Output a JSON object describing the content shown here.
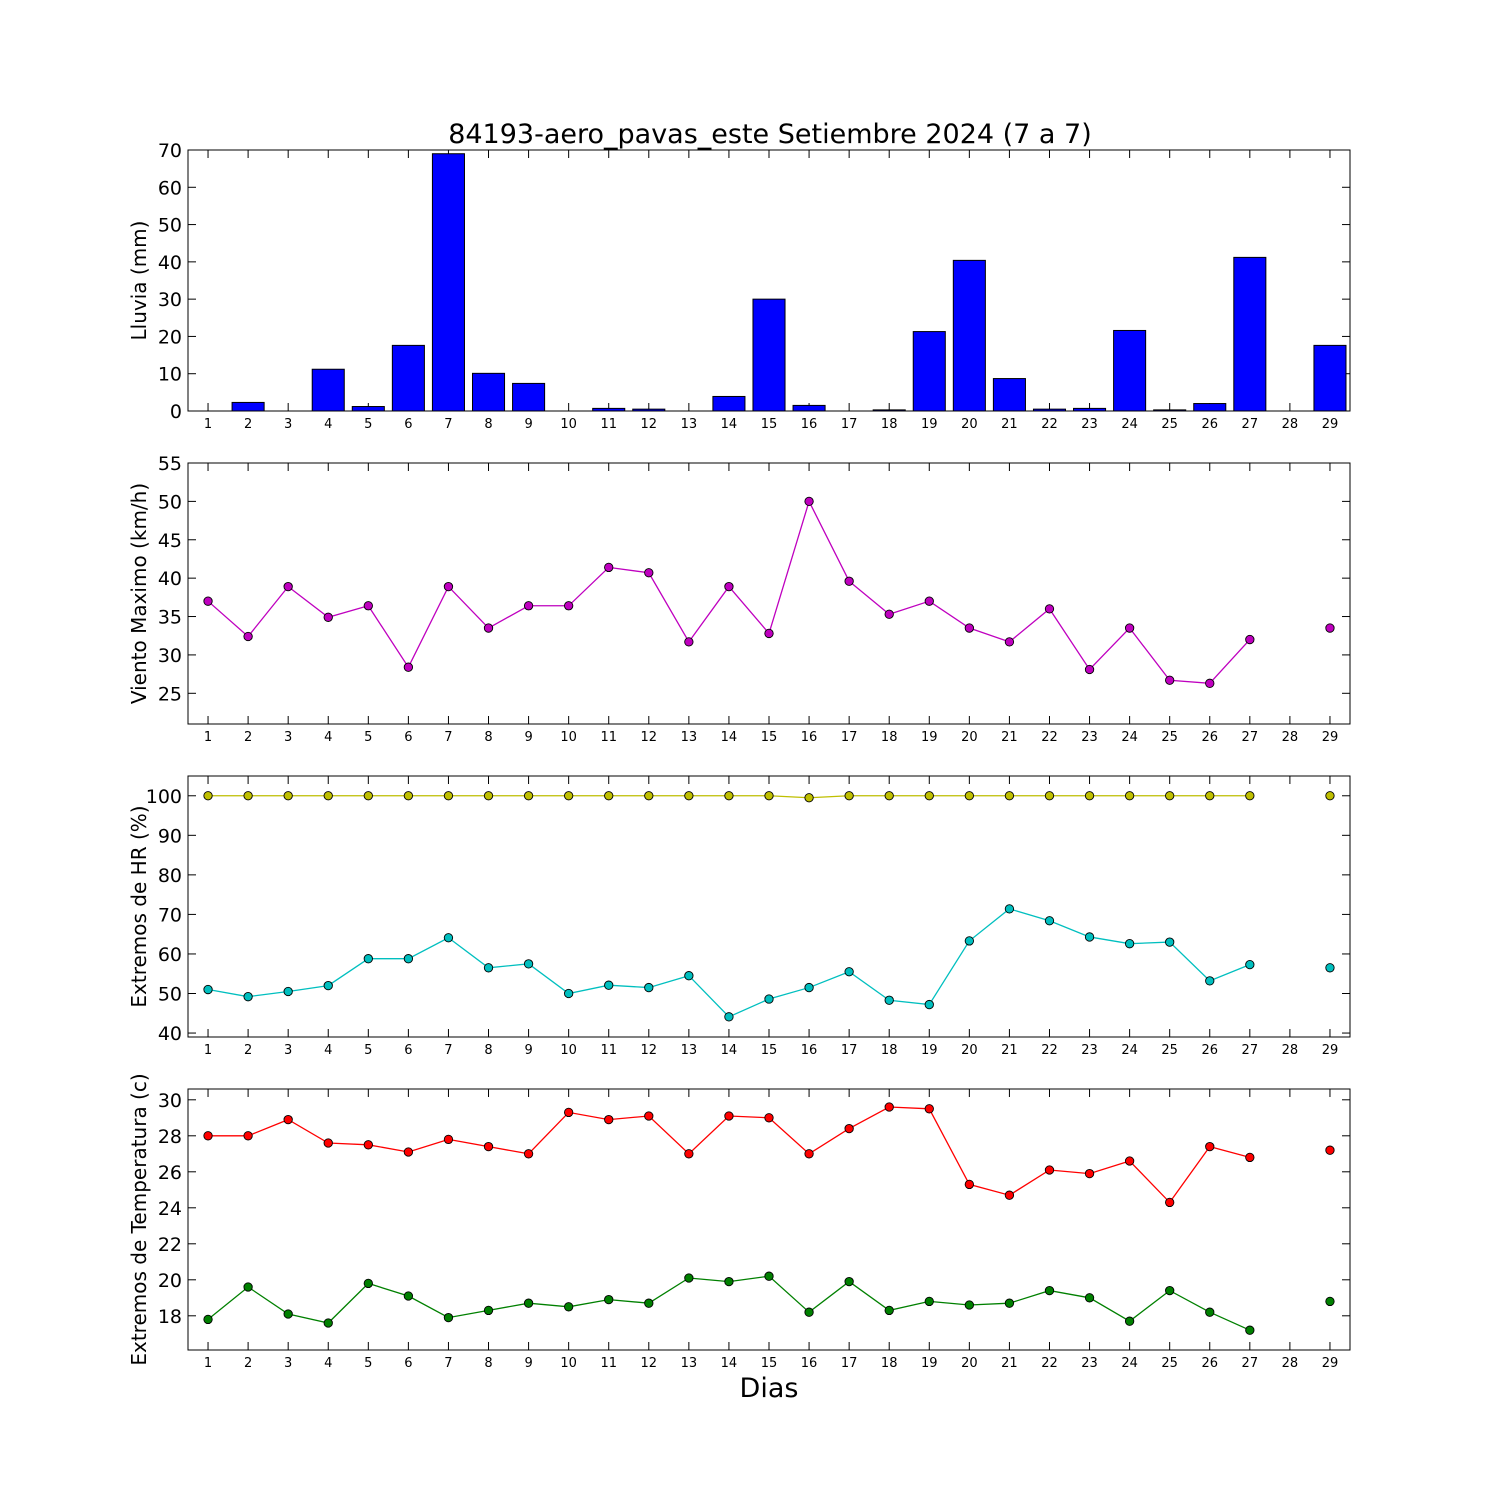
{
  "title": "84193-aero_pavas_este Setiembre 2024  (7 a 7)",
  "xlabel": "Dias",
  "colors": {
    "rain": "#0000ff",
    "wind": "#bf00bf",
    "hr_max": "#bfbf00",
    "hr_min": "#00bfbf",
    "t_max": "#ff0000",
    "t_min": "#008000"
  },
  "chart_data": [
    {
      "type": "bar",
      "ylabel": "Lluvia (mm)",
      "ylim": [
        0,
        70
      ],
      "yticks": [
        0,
        10,
        20,
        30,
        40,
        50,
        60,
        70
      ],
      "xlim": [
        0.5,
        29.5
      ],
      "categories": [
        1,
        2,
        3,
        4,
        5,
        6,
        7,
        8,
        9,
        10,
        11,
        12,
        13,
        14,
        15,
        16,
        17,
        18,
        19,
        20,
        21,
        22,
        23,
        24,
        25,
        26,
        27,
        28,
        29
      ],
      "series": [
        {
          "color": "#0000ff",
          "values": [
            0,
            2.3,
            0,
            11.2,
            1.2,
            17.6,
            69.0,
            10.1,
            7.4,
            0,
            0.7,
            0.5,
            0,
            3.9,
            30.0,
            1.5,
            0,
            0.3,
            21.3,
            40.4,
            8.7,
            0.5,
            0.7,
            21.6,
            0.3,
            2.0,
            41.2,
            null,
            17.6
          ]
        }
      ]
    },
    {
      "type": "line",
      "ylabel": "Viento Maximo (km/h)",
      "ylim": [
        21,
        55
      ],
      "yticks": [
        25,
        30,
        35,
        40,
        45,
        50,
        55
      ],
      "xlim": [
        0.5,
        29.5
      ],
      "categories": [
        1,
        2,
        3,
        4,
        5,
        6,
        7,
        8,
        9,
        10,
        11,
        12,
        13,
        14,
        15,
        16,
        17,
        18,
        19,
        20,
        21,
        22,
        23,
        24,
        25,
        26,
        27,
        28,
        29
      ],
      "series": [
        {
          "color": "#bf00bf",
          "values": [
            37.0,
            32.4,
            38.9,
            34.9,
            36.4,
            28.4,
            38.9,
            33.5,
            36.4,
            36.4,
            41.4,
            40.7,
            31.7,
            38.9,
            32.8,
            50.0,
            39.6,
            35.3,
            37.0,
            33.5,
            31.7,
            36.0,
            28.1,
            33.5,
            26.7,
            26.3,
            32.0,
            null,
            33.5
          ]
        }
      ]
    },
    {
      "type": "line",
      "ylabel": "Extremos de HR (%)",
      "ylim": [
        39,
        105
      ],
      "yticks": [
        40,
        50,
        60,
        70,
        80,
        90,
        100
      ],
      "xlim": [
        0.5,
        29.5
      ],
      "categories": [
        1,
        2,
        3,
        4,
        5,
        6,
        7,
        8,
        9,
        10,
        11,
        12,
        13,
        14,
        15,
        16,
        17,
        18,
        19,
        20,
        21,
        22,
        23,
        24,
        25,
        26,
        27,
        28,
        29
      ],
      "series": [
        {
          "color": "#bfbf00",
          "values": [
            100,
            100,
            100,
            100,
            100,
            100,
            100,
            100,
            100,
            100,
            100,
            100,
            100,
            100,
            100,
            99.5,
            100,
            100,
            100,
            100,
            100,
            100,
            100,
            100,
            100,
            100,
            100,
            null,
            100
          ]
        },
        {
          "color": "#00bfbf",
          "values": [
            51,
            49.2,
            50.5,
            52,
            58.8,
            58.8,
            64.1,
            56.5,
            57.5,
            50,
            52.1,
            51.5,
            54.5,
            44.1,
            48.6,
            51.5,
            55.5,
            48.3,
            47.2,
            63.3,
            71.4,
            68.4,
            64.3,
            62.6,
            63.0,
            53.2,
            57.3,
            null,
            56.5
          ]
        }
      ]
    },
    {
      "type": "line",
      "ylabel": "Extremos de Temperatura (c)",
      "ylim": [
        16.1,
        30.6
      ],
      "yticks": [
        18,
        20,
        22,
        24,
        26,
        28,
        30
      ],
      "xlim": [
        0.5,
        29.5
      ],
      "categories": [
        1,
        2,
        3,
        4,
        5,
        6,
        7,
        8,
        9,
        10,
        11,
        12,
        13,
        14,
        15,
        16,
        17,
        18,
        19,
        20,
        21,
        22,
        23,
        24,
        25,
        26,
        27,
        28,
        29
      ],
      "series": [
        {
          "color": "#ff0000",
          "values": [
            28.0,
            28.0,
            28.9,
            27.6,
            27.5,
            27.1,
            27.8,
            27.4,
            27.0,
            29.3,
            28.9,
            29.1,
            27.0,
            29.1,
            29.0,
            27.0,
            28.4,
            29.6,
            29.5,
            25.3,
            24.7,
            26.1,
            25.9,
            26.6,
            24.3,
            27.4,
            26.8,
            null,
            27.2
          ]
        },
        {
          "color": "#008000",
          "values": [
            17.8,
            19.6,
            18.1,
            17.6,
            19.8,
            19.1,
            17.9,
            18.3,
            18.7,
            18.5,
            18.9,
            18.7,
            20.1,
            19.9,
            20.2,
            18.2,
            19.9,
            18.3,
            18.8,
            18.6,
            18.7,
            19.4,
            19.0,
            17.7,
            19.4,
            18.2,
            17.2,
            null,
            18.8
          ]
        }
      ]
    }
  ]
}
